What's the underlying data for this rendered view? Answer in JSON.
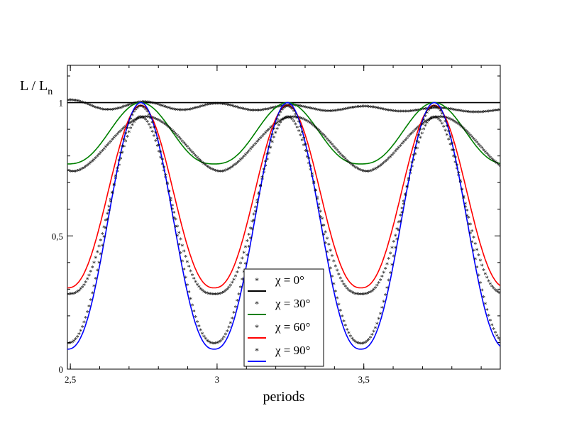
{
  "chart_data": {
    "type": "line",
    "title": "",
    "xlabel": "periods",
    "ylabel": "L / L",
    "ylabel_subscript": "n",
    "xlim": [
      2.49,
      3.965
    ],
    "ylim": [
      0,
      1.14
    ],
    "x_ticks": [
      2.5,
      3,
      3.5
    ],
    "x_tick_labels": [
      "2,5",
      "3",
      "3,5"
    ],
    "y_ticks": [
      0,
      0.5,
      1
    ],
    "y_tick_labels": [
      "0",
      "0,5",
      "1"
    ],
    "grid": false,
    "legend_position": "bottom-center",
    "series": [
      {
        "name": "χ = 0°",
        "color": "#000000",
        "min_stars": 0.965,
        "min_line": 1.0,
        "star_ripple": 0.03
      },
      {
        "name": "χ = 30°",
        "color": "#008000",
        "min_stars": 0.74,
        "min_line": 0.77,
        "max_stars": 0.945,
        "max_line": 1.0
      },
      {
        "name": "χ = 60°",
        "color": "#ff0000",
        "min_stars": 0.28,
        "min_line": 0.305,
        "max_stars": 0.945,
        "max_line": 0.99
      },
      {
        "name": "χ = 90°",
        "color": "#0000ff",
        "min_stars": 0.095,
        "min_line": 0.075,
        "max_stars": 0.985,
        "max_line": 1.0
      }
    ],
    "period": 0.5,
    "peak_positions": [
      2.74,
      3.24,
      3.74
    ],
    "trough_positions": [
      2.99,
      3.49
    ]
  }
}
